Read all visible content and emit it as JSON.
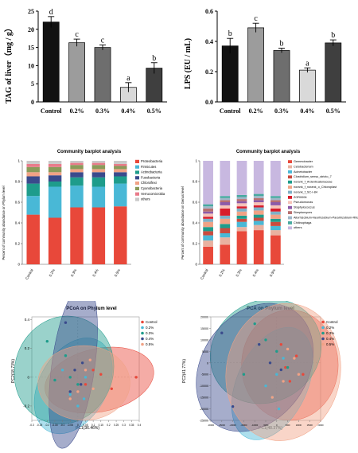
{
  "colors": {
    "red": "#e8483a",
    "cyan": "#49b8d6",
    "teal": "#1e9c8b",
    "navy": "#3a4a8c",
    "salmon": "#f1a285",
    "olive": "#8a9b5a",
    "pink": "#e97b8a",
    "gray": "#c9c9c9",
    "bar_black": "#111111",
    "bar_gray1": "#9c9c9c",
    "bar_gray2": "#6e6e6e",
    "bar_light": "#d9d9d9",
    "bar_dark": "#3f3f3f"
  },
  "chart_data": [
    {
      "type": "bar",
      "categories": [
        "Control",
        "0.2%",
        "0.3%",
        "0.4%",
        "0.5%"
      ],
      "values": [
        22,
        16.3,
        15,
        4,
        9.3
      ],
      "errors": [
        1.5,
        1,
        0.7,
        1.3,
        1.5
      ],
      "letters": [
        "d",
        "c",
        "c",
        "a",
        "b"
      ],
      "ylabel": "TAG of liver（mg / g）",
      "ylim": [
        0,
        25
      ],
      "yticks": [
        0,
        5,
        10,
        15,
        20,
        25
      ],
      "ytick_labels": [
        "0",
        "5",
        "10",
        "15",
        "20",
        "25"
      ]
    },
    {
      "type": "bar",
      "categories": [
        "Control",
        "0.2%",
        "0.3%",
        "0.4%",
        "0.5%"
      ],
      "values": [
        0.37,
        0.49,
        0.34,
        0.21,
        0.39
      ],
      "errors": [
        0.05,
        0.03,
        0.015,
        0.015,
        0.02
      ],
      "letters": [
        "b",
        "c",
        "b",
        "a",
        "b"
      ],
      "ylabel": "LPS (EU / mL)",
      "ylim": [
        0,
        0.6
      ],
      "yticks": [
        0,
        0.2,
        0.4,
        0.6
      ],
      "ytick_labels": [
        "0.0",
        "0.2",
        "0.4",
        "0.6"
      ]
    },
    {
      "type": "bar",
      "stacked": true,
      "title": "Community barplot analysis",
      "ylabel": "Percent of community abundance on Phylum level",
      "categories": [
        "Control",
        "0.2%",
        "0.3%",
        "0.4%",
        "0.5%"
      ],
      "ylim": [
        0,
        1
      ],
      "yticks": [
        0,
        0.2,
        0.4,
        0.6,
        0.8,
        1
      ],
      "ytick_labels": [
        "0",
        "0.2",
        "0.4",
        "0.6",
        "0.8",
        "1"
      ],
      "series": [
        {
          "name": "Proteobacteria",
          "values": [
            0.48,
            0.45,
            0.55,
            0.55,
            0.56
          ]
        },
        {
          "name": "Firmicutes",
          "values": [
            0.18,
            0.3,
            0.21,
            0.2,
            0.22
          ]
        },
        {
          "name": "Actinobacteria",
          "values": [
            0.12,
            0.05,
            0.08,
            0.09,
            0.07
          ]
        },
        {
          "name": "Fusobacteria",
          "values": [
            0.07,
            0.06,
            0.05,
            0.05,
            0.04
          ]
        },
        {
          "name": "Chloroflexi",
          "values": [
            0.04,
            0.03,
            0.03,
            0.03,
            0.03
          ]
        },
        {
          "name": "Cyanobacteria",
          "values": [
            0.05,
            0.05,
            0.04,
            0.04,
            0.03
          ]
        },
        {
          "name": "Verrucomicrobia",
          "values": [
            0.03,
            0.03,
            0.02,
            0.02,
            0.02
          ]
        },
        {
          "name": "others",
          "values": [
            0.03,
            0.03,
            0.02,
            0.02,
            0.03
          ]
        }
      ],
      "series_colors": [
        "#e8483a",
        "#49b8d6",
        "#1e9c8b",
        "#3a4a8c",
        "#f1a285",
        "#8a9b5a",
        "#e97b8a",
        "#c9c9c9"
      ]
    },
    {
      "type": "bar",
      "stacked": true,
      "title": "Community barplot analysis",
      "ylabel": "Percent of community abundance on Genus level",
      "categories": [
        "Control",
        "0.2%",
        "0.3%",
        "0.4%",
        "0.5%"
      ],
      "ylim": [
        0,
        1
      ],
      "yticks": [
        0,
        0.2,
        0.4,
        0.6,
        0.8,
        1
      ],
      "ytick_labels": [
        "0",
        "0.2",
        "0.4",
        "0.6",
        "0.8",
        "1"
      ],
      "series": [
        {
          "name": "Gemmobacter",
          "values": [
            0.17,
            0.19,
            0.32,
            0.33,
            0.28
          ]
        },
        {
          "name": "Cetobacterium",
          "values": [
            0.06,
            0.07,
            0.04,
            0.05,
            0.05
          ]
        },
        {
          "name": "Acinetobacter",
          "values": [
            0.05,
            0.04,
            0.05,
            0.04,
            0.04
          ]
        },
        {
          "name": "Clostridium_sensu_stricto_7",
          "values": [
            0.04,
            0.05,
            0.03,
            0.03,
            0.04
          ]
        },
        {
          "name": "norank_f_Ardenticatenaceae",
          "values": [
            0.04,
            0.04,
            0.03,
            0.03,
            0.03
          ]
        },
        {
          "name": "norank_f_norank_o_Chloroplast",
          "values": [
            0.05,
            0.05,
            0.04,
            0.04,
            0.04
          ]
        },
        {
          "name": "norank_f_SC-I-84",
          "values": [
            0.03,
            0.03,
            0.03,
            0.03,
            0.03
          ]
        },
        {
          "name": "ZOR0006",
          "values": [
            0.02,
            0.07,
            0.02,
            0.02,
            0.03
          ]
        },
        {
          "name": "Pseudomonas",
          "values": [
            0.03,
            0.03,
            0.03,
            0.03,
            0.03
          ]
        },
        {
          "name": "Staphylococcus",
          "values": [
            0.02,
            0.03,
            0.02,
            0.02,
            0.03
          ]
        },
        {
          "name": "Streptomyces",
          "values": [
            0.03,
            0.02,
            0.02,
            0.02,
            0.02
          ]
        },
        {
          "name": "Allorhizobium-Neorhizobium-Pararhizobium-Rhizobium",
          "values": [
            0.02,
            0.02,
            0.02,
            0.02,
            0.02
          ]
        },
        {
          "name": "Chitinophaga",
          "values": [
            0.02,
            0.02,
            0.02,
            0.02,
            0.02
          ]
        },
        {
          "name": "others",
          "values": [
            0.42,
            0.34,
            0.33,
            0.32,
            0.34
          ]
        }
      ],
      "series_colors": [
        "#e8483a",
        "#e9b1a0",
        "#49b8d6",
        "#c94b3f",
        "#1e9c8b",
        "#f1a285",
        "#7fb0c6",
        "#d81d2b",
        "#f6c2b8",
        "#8c5aa8",
        "#b86f6f",
        "#9fb6c8",
        "#47a9a0",
        "#c8b8e0"
      ]
    },
    {
      "type": "scatter",
      "title": "PCoA on Phylum level",
      "xlabel": "PC1(36.46%)",
      "ylabel": "PC2(18.73%)",
      "xlim": [
        -0.3,
        0.4
      ],
      "ylim": [
        -0.3,
        0.42
      ],
      "xticks": [
        -0.3,
        -0.25,
        -0.2,
        -0.15,
        -0.1,
        -0.05,
        0,
        0.05,
        0.1,
        0.15,
        0.2,
        0.25,
        0.3,
        0.35,
        0.4
      ],
      "xtick_labels": [
        "-0.3",
        "-0.25",
        "-0.2",
        "-0.15",
        "-0.1",
        "-0.05",
        "0",
        "0.05",
        "0.1",
        "0.15",
        "0.2",
        "0.25",
        "0.3",
        "0.35",
        "0.4"
      ],
      "yticks": [
        -0.2,
        0,
        0.2,
        0.4
      ],
      "ytick_labels": [
        "-0.2",
        "0",
        "0.2",
        "0.4"
      ],
      "series": [
        {
          "name": "Control",
          "color": "#e8483a",
          "x": [
            0.05,
            0.1,
            0.15,
            0.22,
            0.38
          ],
          "y": [
            -0.05,
            0.05,
            0.02,
            -0.08,
            0.0
          ]
        },
        {
          "name": "0.2%",
          "color": "#49b8d6",
          "x": [
            -0.05,
            0.0,
            0.04,
            -0.1,
            0.05
          ],
          "y": [
            -0.12,
            -0.2,
            -0.15,
            0.05,
            0.0
          ]
        },
        {
          "name": "0.3%",
          "color": "#1e9c8b",
          "x": [
            -0.2,
            -0.15,
            -0.05,
            0.0,
            -0.08
          ],
          "y": [
            0.25,
            -0.02,
            0.0,
            -0.05,
            0.15
          ]
        },
        {
          "name": "0.4%",
          "color": "#3a4a8c",
          "x": [
            -0.08,
            -0.02,
            0.02,
            -0.05,
            0.03
          ],
          "y": [
            0.38,
            0.05,
            -0.05,
            -0.1,
            0.1
          ]
        },
        {
          "name": "0.5%",
          "color": "#f1a285",
          "x": [
            0.0,
            0.05,
            0.1,
            -0.05,
            0.08
          ],
          "y": [
            -0.1,
            0.05,
            -0.08,
            -0.15,
            0.12
          ]
        }
      ]
    },
    {
      "type": "scatter",
      "title": "PCA on Phylum level",
      "xlabel": "PC1(48.37%)",
      "ylabel": "PC2(41.77%)",
      "xlim": [
        -30000,
        20000
      ],
      "ylim": [
        -25000,
        20000
      ],
      "xticks": [
        -30000,
        -25000,
        -20000,
        -15000,
        -10000,
        -5000,
        0,
        5000,
        10000,
        15000,
        20000
      ],
      "xtick_labels": [
        "-30000",
        "-25000",
        "-20000",
        "-15000",
        "-10000",
        "-5000",
        "0",
        "5000",
        "10000",
        "15000",
        "20000"
      ],
      "yticks": [
        -25000,
        -20000,
        -15000,
        -10000,
        -5000,
        0,
        5000,
        10000,
        15000,
        20000
      ],
      "ytick_labels": [
        "-25000",
        "-20000",
        "-15000",
        "-10000",
        "-5000",
        "0",
        "5000",
        "10000",
        "15000",
        "20000"
      ],
      "series": [
        {
          "name": "Control",
          "color": "#e8483a",
          "x": [
            4000,
            9000,
            12000,
            2000,
            6000
          ],
          "y": [
            -2000,
            3000,
            -5000,
            8000,
            -8000
          ]
        },
        {
          "name": "0.2%",
          "color": "#49b8d6",
          "x": [
            -5000,
            0,
            3000,
            -2000,
            1000
          ],
          "y": [
            -10000,
            -5000,
            2000,
            -15000,
            -20000
          ]
        },
        {
          "name": "0.3%",
          "color": "#1e9c8b",
          "x": [
            -10000,
            -5000,
            0,
            5000,
            -15000
          ],
          "y": [
            17000,
            10000,
            5000,
            -2000,
            -5000
          ]
        },
        {
          "name": "0.4%",
          "color": "#3a4a8c",
          "x": [
            -25000,
            -8000,
            -3000,
            2000,
            -20000
          ],
          "y": [
            13000,
            8000,
            0,
            -3000,
            -19000
          ]
        },
        {
          "name": "0.5%",
          "color": "#f1a285",
          "x": [
            -2000,
            3000,
            8000,
            10000,
            5000
          ],
          "y": [
            -15000,
            -8000,
            2000,
            -5000,
            6000
          ]
        }
      ]
    }
  ]
}
